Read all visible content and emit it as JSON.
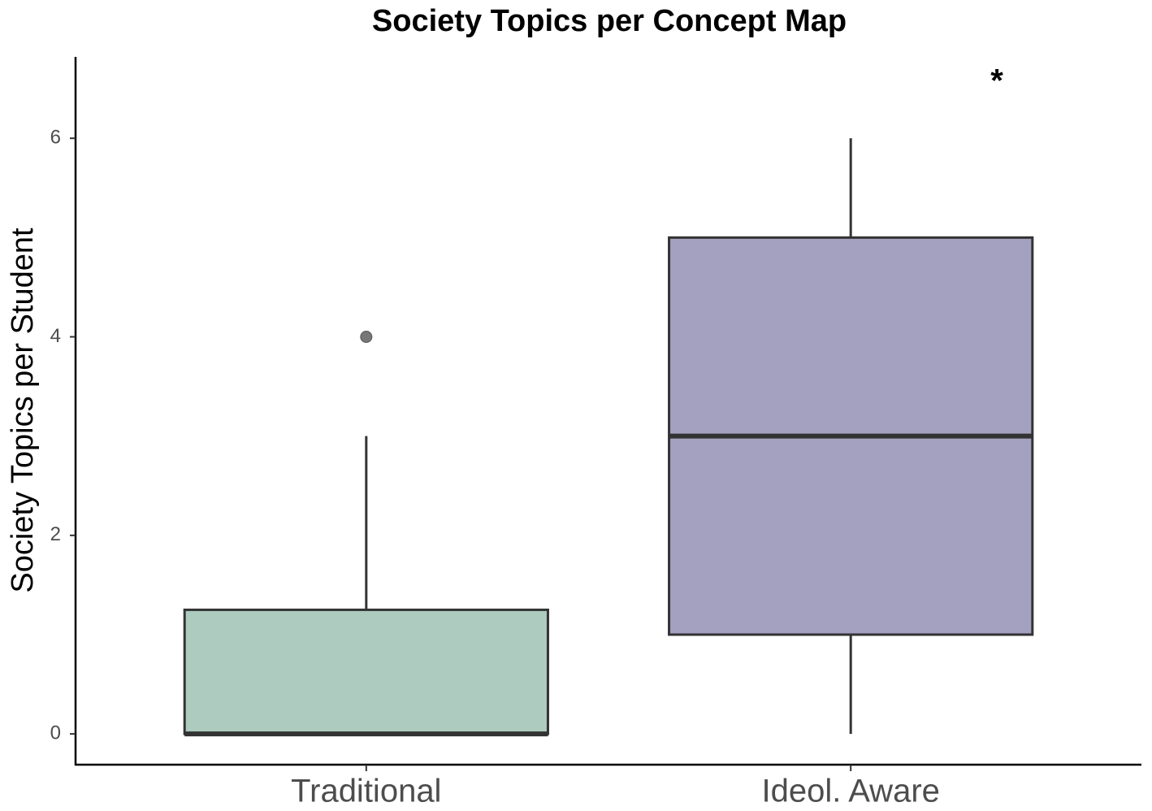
{
  "chart_data": {
    "type": "box",
    "title": "Society Topics per Concept Map",
    "y_label": "Society Topics per Student",
    "categories": [
      "Traditional",
      "Ideol. Aware"
    ],
    "min": [
      0,
      0
    ],
    "q1": [
      0,
      1
    ],
    "median": [
      0,
      3
    ],
    "q3": [
      1.25,
      5
    ],
    "max": [
      3,
      6
    ],
    "outliers": [
      [
        4
      ],
      []
    ],
    "colors": [
      "#adcbbf",
      "#a4a1c0"
    ],
    "annotation": "*",
    "ylim": [
      -0.31,
      6.82
    ],
    "yticks": [
      0,
      2,
      4,
      6
    ],
    "grid": false
  }
}
